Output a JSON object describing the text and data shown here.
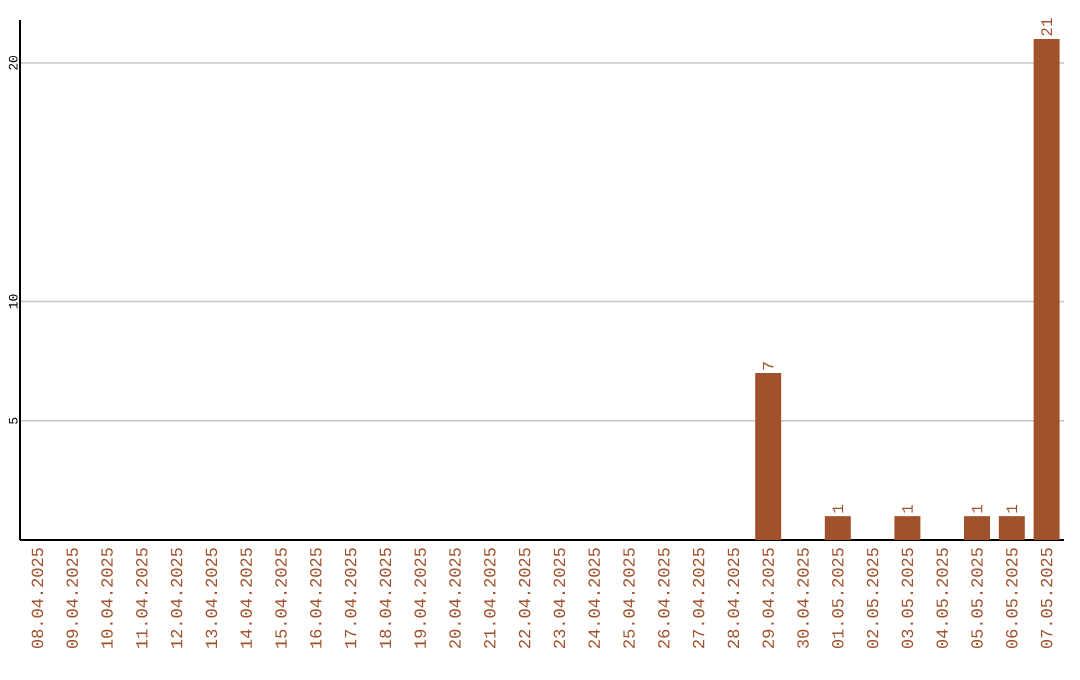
{
  "chart_data": {
    "type": "bar",
    "categories": [
      "08.04.2025",
      "09.04.2025",
      "10.04.2025",
      "11.04.2025",
      "12.04.2025",
      "13.04.2025",
      "14.04.2025",
      "15.04.2025",
      "16.04.2025",
      "17.04.2025",
      "18.04.2025",
      "19.04.2025",
      "20.04.2025",
      "21.04.2025",
      "22.04.2025",
      "23.04.2025",
      "24.04.2025",
      "25.04.2025",
      "26.04.2025",
      "27.04.2025",
      "28.04.2025",
      "29.04.2025",
      "30.04.2025",
      "01.05.2025",
      "02.05.2025",
      "03.05.2025",
      "04.05.2025",
      "05.05.2025",
      "06.05.2025",
      "07.05.2025"
    ],
    "values": [
      0,
      0,
      0,
      0,
      0,
      0,
      0,
      0,
      0,
      0,
      0,
      0,
      0,
      0,
      0,
      0,
      0,
      0,
      0,
      0,
      0,
      7,
      0,
      1,
      0,
      1,
      0,
      1,
      1,
      21
    ],
    "value_labels": [
      null,
      null,
      null,
      null,
      null,
      null,
      null,
      null,
      null,
      null,
      null,
      null,
      null,
      null,
      null,
      null,
      null,
      null,
      null,
      null,
      null,
      "7",
      null,
      "1",
      null,
      "1",
      null,
      "1",
      "1",
      "21"
    ],
    "color": "#a0522d",
    "ylim": [
      0,
      21.8
    ],
    "yticks": [
      5,
      10,
      20
    ],
    "grid": "y"
  }
}
